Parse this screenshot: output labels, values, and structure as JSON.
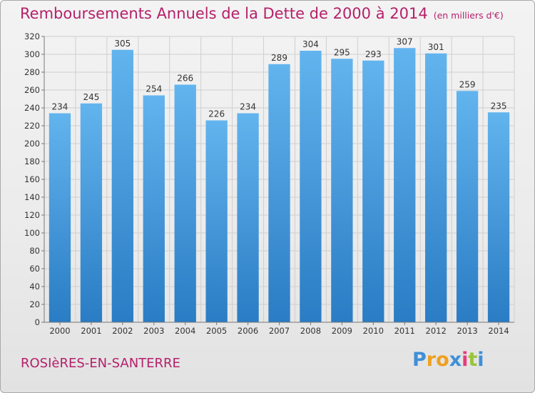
{
  "chart_data": {
    "type": "bar",
    "title": "Remboursements Annuels de la Dette de 2000 à 2014",
    "unit_label": "(en milliers d'€)",
    "xlabel": "",
    "ylabel": "",
    "categories": [
      "2000",
      "2001",
      "2002",
      "2003",
      "2004",
      "2005",
      "2006",
      "2007",
      "2008",
      "2009",
      "2010",
      "2011",
      "2012",
      "2013",
      "2014"
    ],
    "values": [
      234,
      245,
      305,
      254,
      266,
      226,
      234,
      289,
      304,
      295,
      293,
      307,
      301,
      259,
      235
    ],
    "ylim": [
      0,
      320
    ],
    "ytick_step": 20,
    "grid": true,
    "legend": "none"
  },
  "footer": {
    "town": "ROSIèRES-EN-SANTERRE",
    "logo_text": "Proxiti"
  },
  "colors": {
    "title": "#b5206a",
    "bar_light": "#62b4ee",
    "bar_dark": "#2a7cc4",
    "grid": "#cfcfcf",
    "axis_text": "#333333"
  },
  "logo_colors": [
    "#3f8fd8",
    "#f0a020",
    "#f0a020",
    "#3f8fd8",
    "#e63c7e",
    "#9ac43a",
    "#3f8fd8"
  ]
}
